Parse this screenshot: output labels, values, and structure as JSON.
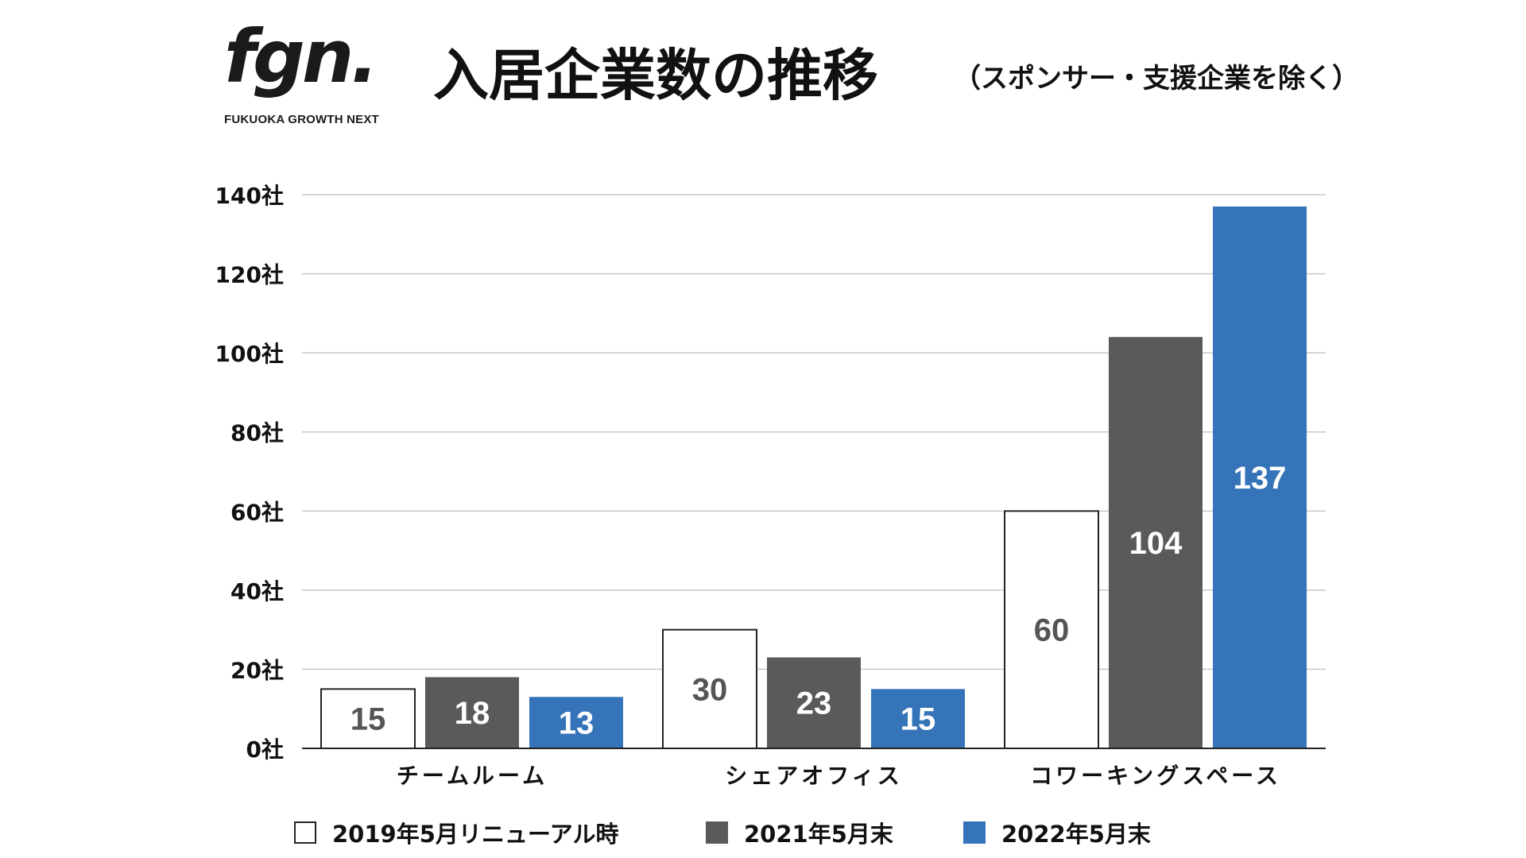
{
  "logo": {
    "mark": "fgn.",
    "name": "FUKUOKA GROWTH NEXT"
  },
  "header": {
    "title": "入居企業数の推移",
    "subtitle": "（スポンサー・支援企業を除く）"
  },
  "colors": {
    "series_2019": "#ffffff",
    "series_2019_border": "#222222",
    "series_2021": "#5a5a5a",
    "series_2022": "#3574b8",
    "grid": "#c8c8c8",
    "axis": "#222222",
    "label_dark": "#555555",
    "label_light": "#ffffff"
  },
  "chart_data": {
    "type": "bar",
    "title": "入居企業数の推移",
    "subtitle": "（スポンサー・支援企業を除く）",
    "categories": [
      "チームルーム",
      "シェアオフィス",
      "コワーキングスペース"
    ],
    "series": [
      {
        "name": "2019年5月リニューアル時",
        "values": [
          15,
          30,
          60
        ]
      },
      {
        "name": "2021年5月末",
        "values": [
          18,
          23,
          104
        ]
      },
      {
        "name": "2022年5月末",
        "values": [
          13,
          15,
          137
        ]
      }
    ],
    "y_ticks": [
      0,
      20,
      40,
      60,
      80,
      100,
      120,
      140
    ],
    "y_tick_labels": [
      "0社",
      "20社",
      "40社",
      "60社",
      "80社",
      "100社",
      "120社",
      "140社"
    ],
    "ylim": [
      0,
      140
    ],
    "xlabel": "",
    "ylabel": "",
    "grid": true,
    "legend_position": "bottom"
  }
}
